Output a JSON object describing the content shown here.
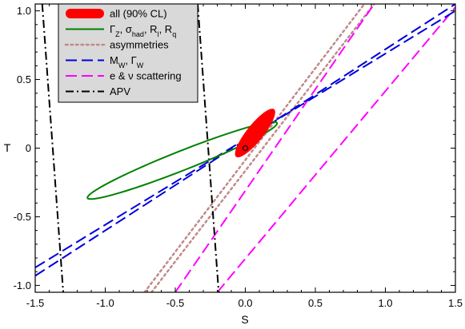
{
  "chart_data": {
    "type": "line",
    "xlabel": "S",
    "ylabel": "T",
    "xlim": [
      -1.5,
      1.5
    ],
    "ylim": [
      -1.05,
      1.05
    ],
    "x_ticks": [
      "-1.5",
      "-1.0",
      "-0.5",
      "0.0",
      "0.5",
      "1.0",
      "1.5"
    ],
    "y_ticks": [
      "-1.0",
      "-0.5",
      "0",
      "0.5",
      "1.0"
    ],
    "x_tick_values": [
      -1.5,
      -1.0,
      -0.5,
      0.0,
      0.5,
      1.0,
      1.5
    ],
    "y_tick_values": [
      -1.0,
      -0.5,
      0,
      0.5,
      1.0
    ],
    "grid": false,
    "legend_position": "top-left",
    "reference_point": {
      "x": 0.0,
      "y": 0.0
    },
    "series": [
      {
        "name": "all (90% CL)",
        "style": "filled-ellipse",
        "color": "#ff0000",
        "center": [
          0.07,
          0.11
        ],
        "semi_major": 0.22,
        "semi_minor": 0.06,
        "angle_deg": 52
      },
      {
        "name": "Γ_Z, σ_had, R_l, R_q",
        "style": "solid",
        "color": "#008000",
        "center": [
          -0.45,
          -0.09
        ],
        "semi_major": 0.73,
        "semi_minor": 0.07,
        "angle_deg": 22
      },
      {
        "name": "asymmetries",
        "style": "dotted",
        "color": "#c08a8a",
        "bands": [
          [
            [
              -0.72,
              -1.05
            ],
            [
              0.85,
              1.05
            ]
          ],
          [
            [
              -0.67,
              -1.05
            ],
            [
              0.92,
              1.05
            ]
          ]
        ]
      },
      {
        "name": "M_W, Γ_W",
        "style": "dashed",
        "color": "#0000dd",
        "bands": [
          [
            [
              -1.5,
              -0.93
            ],
            [
              1.5,
              1.05
            ]
          ],
          [
            [
              -1.5,
              -0.87
            ],
            [
              1.5,
              1.0
            ]
          ]
        ]
      },
      {
        "name": "e & ν scattering",
        "style": "dashed",
        "color": "#ff00ff",
        "bands": [
          [
            [
              -0.5,
              -1.05
            ],
            [
              0.92,
              1.05
            ]
          ],
          [
            [
              -0.2,
              -1.05
            ],
            [
              1.52,
              1.05
            ]
          ]
        ]
      },
      {
        "name": "APV",
        "style": "dash-dot",
        "color": "#000000",
        "bands": [
          [
            [
              -1.45,
              1.05
            ],
            [
              -1.3,
              -1.05
            ]
          ],
          [
            [
              -0.34,
              1.05
            ],
            [
              -0.19,
              -1.05
            ]
          ]
        ]
      }
    ],
    "legend": {
      "entries": [
        {
          "label": "all (90% CL)"
        },
        {
          "label": "Γ",
          "sub": "Z",
          "extra": [
            ", σ",
            "had",
            ", R",
            "l",
            ", R",
            "q"
          ]
        },
        {
          "label": "asymmetries"
        },
        {
          "label": "M",
          "sub": "W",
          "extra": [
            ", Γ",
            "W"
          ]
        },
        {
          "label": "e & ν scattering"
        },
        {
          "label": "APV"
        }
      ]
    }
  }
}
